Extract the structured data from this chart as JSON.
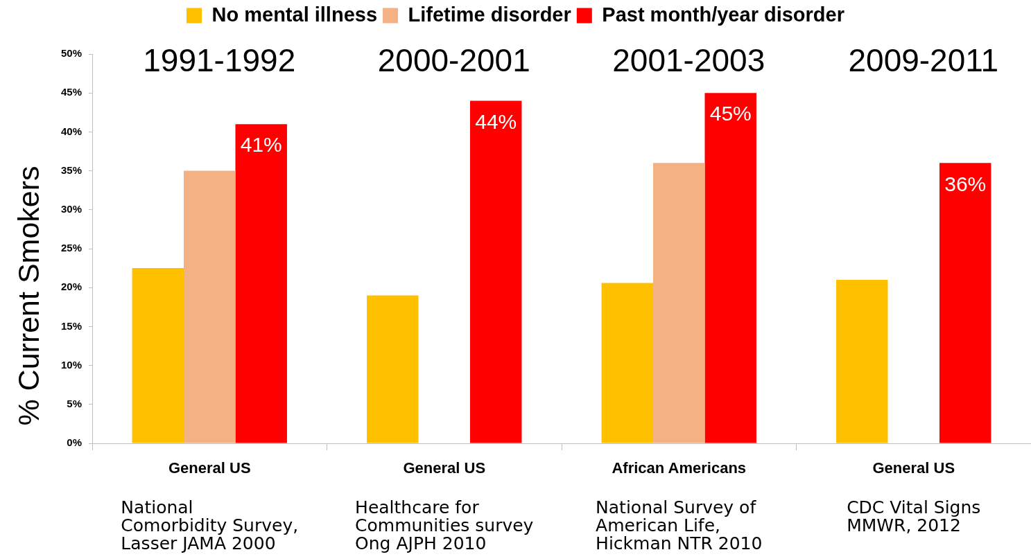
{
  "chart_data": {
    "type": "bar",
    "legend": "top",
    "ylabel": "% Current Smokers",
    "categories": [
      "General US",
      "General US",
      "African Americans",
      "General US"
    ],
    "series": [
      {
        "name": "No mental illness",
        "color": "#ffc000",
        "values": [
          22.5,
          19,
          20.6,
          21
        ]
      },
      {
        "name": "Lifetime disorder",
        "color": "#f4b183",
        "values": [
          35,
          null,
          36,
          null
        ]
      },
      {
        "name": "Past month/year disorder",
        "color": "#ff0000",
        "values": [
          41,
          44,
          45,
          36
        ],
        "value_labels": [
          "41%",
          "44%",
          "45%",
          "36%"
        ]
      }
    ],
    "ylim": [
      0,
      50
    ],
    "yticks": [
      {
        "value": 0,
        "label": "0%"
      },
      {
        "value": 5,
        "label": "5%"
      },
      {
        "value": 10,
        "label": "10%"
      },
      {
        "value": 15,
        "label": "15%"
      },
      {
        "value": 20,
        "label": "20%"
      },
      {
        "value": 25,
        "label": "25%"
      },
      {
        "value": 30,
        "label": "30%"
      },
      {
        "value": 35,
        "label": "35%"
      },
      {
        "value": 40,
        "label": "40%"
      },
      {
        "value": 45,
        "label": "45%"
      },
      {
        "value": 50,
        "label": "50%"
      }
    ],
    "annotations": [
      "1991-1992",
      "2000-2001",
      "2001-2003",
      "2009-2011",
      "National\nComorbidity Survey,\nLasser JAMA 2000",
      "Healthcare for\nCommunities survey\nOng AJPH 2010",
      "National Survey of\nAmerican Life,\nHickman NTR 2010",
      "CDC Vital Signs\nMMWR, 2012"
    ]
  }
}
